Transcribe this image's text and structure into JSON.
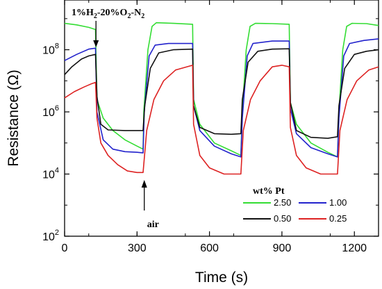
{
  "chart_data": {
    "type": "line",
    "xlabel": "Time (s)",
    "ylabel": "Resistance (Ω)",
    "xlim": [
      0,
      1300
    ],
    "ylim_log10": [
      2,
      9.6
    ],
    "y_scale": "log",
    "x_ticks": [
      0,
      300,
      600,
      900,
      1200
    ],
    "y_ticks": [
      {
        "label_base": "10",
        "label_exp": "2",
        "log": 2
      },
      {
        "label_base": "10",
        "label_exp": "4",
        "log": 4
      },
      {
        "label_base": "10",
        "label_exp": "6",
        "log": 6
      },
      {
        "label_base": "10",
        "label_exp": "8",
        "log": 8
      }
    ],
    "annotations": {
      "gas_parts": [
        "1%H",
        "2",
        "-20%O",
        "2",
        "-N",
        "2"
      ],
      "gas_x": 130,
      "air_label": "air",
      "air_x": 330
    },
    "legend": {
      "title": "wt% Pt",
      "placement": "bottom-right"
    },
    "series": [
      {
        "name": "2.50",
        "color": "#33dd33",
        "points": [
          [
            0,
            8.85
          ],
          [
            50,
            8.8
          ],
          [
            100,
            8.72
          ],
          [
            128,
            8.65
          ],
          [
            134,
            6.4
          ],
          [
            160,
            5.8
          ],
          [
            200,
            5.4
          ],
          [
            250,
            5.1
          ],
          [
            300,
            4.9
          ],
          [
            325,
            4.8
          ],
          [
            328,
            6.0
          ],
          [
            345,
            8.0
          ],
          [
            362,
            8.75
          ],
          [
            380,
            8.87
          ],
          [
            450,
            8.85
          ],
          [
            530,
            8.82
          ],
          [
            534,
            6.4
          ],
          [
            560,
            5.6
          ],
          [
            620,
            5.0
          ],
          [
            690,
            4.75
          ],
          [
            730,
            4.6
          ],
          [
            736,
            6.0
          ],
          [
            752,
            8.0
          ],
          [
            768,
            8.75
          ],
          [
            790,
            8.85
          ],
          [
            860,
            8.84
          ],
          [
            930,
            8.82
          ],
          [
            935,
            6.3
          ],
          [
            960,
            5.6
          ],
          [
            1020,
            5.0
          ],
          [
            1090,
            4.7
          ],
          [
            1130,
            4.55
          ],
          [
            1136,
            6.0
          ],
          [
            1152,
            8.0
          ],
          [
            1168,
            8.75
          ],
          [
            1190,
            8.85
          ],
          [
            1250,
            8.84
          ],
          [
            1300,
            8.78
          ]
        ]
      },
      {
        "name": "1.00",
        "color": "#2222cc",
        "points": [
          [
            0,
            7.65
          ],
          [
            50,
            7.85
          ],
          [
            100,
            8.02
          ],
          [
            128,
            8.05
          ],
          [
            134,
            6.0
          ],
          [
            160,
            5.1
          ],
          [
            200,
            4.8
          ],
          [
            250,
            4.72
          ],
          [
            300,
            4.7
          ],
          [
            325,
            4.68
          ],
          [
            330,
            6.0
          ],
          [
            350,
            7.8
          ],
          [
            375,
            8.15
          ],
          [
            430,
            8.2
          ],
          [
            530,
            8.2
          ],
          [
            534,
            6.2
          ],
          [
            560,
            5.4
          ],
          [
            620,
            4.9
          ],
          [
            690,
            4.65
          ],
          [
            730,
            4.55
          ],
          [
            736,
            5.8
          ],
          [
            756,
            7.8
          ],
          [
            780,
            8.2
          ],
          [
            860,
            8.28
          ],
          [
            930,
            8.28
          ],
          [
            935,
            6.1
          ],
          [
            960,
            5.3
          ],
          [
            1020,
            4.85
          ],
          [
            1090,
            4.65
          ],
          [
            1130,
            4.55
          ],
          [
            1136,
            5.8
          ],
          [
            1156,
            7.8
          ],
          [
            1180,
            8.2
          ],
          [
            1240,
            8.3
          ],
          [
            1300,
            8.35
          ]
        ]
      },
      {
        "name": "0.50",
        "color": "#111111",
        "points": [
          [
            0,
            7.2
          ],
          [
            30,
            7.45
          ],
          [
            70,
            7.7
          ],
          [
            100,
            7.8
          ],
          [
            128,
            7.85
          ],
          [
            134,
            6.5
          ],
          [
            150,
            5.6
          ],
          [
            180,
            5.42
          ],
          [
            250,
            5.4
          ],
          [
            300,
            5.4
          ],
          [
            325,
            5.4
          ],
          [
            332,
            6.2
          ],
          [
            355,
            7.4
          ],
          [
            390,
            7.9
          ],
          [
            450,
            8.0
          ],
          [
            530,
            8.02
          ],
          [
            534,
            6.2
          ],
          [
            560,
            5.5
          ],
          [
            620,
            5.3
          ],
          [
            690,
            5.28
          ],
          [
            730,
            5.3
          ],
          [
            736,
            6.4
          ],
          [
            760,
            7.6
          ],
          [
            800,
            7.95
          ],
          [
            860,
            8.02
          ],
          [
            930,
            8.03
          ],
          [
            935,
            6.3
          ],
          [
            960,
            5.4
          ],
          [
            1020,
            5.18
          ],
          [
            1090,
            5.15
          ],
          [
            1130,
            5.2
          ],
          [
            1136,
            6.2
          ],
          [
            1160,
            7.4
          ],
          [
            1200,
            7.85
          ],
          [
            1250,
            7.95
          ],
          [
            1300,
            8.0
          ]
        ]
      },
      {
        "name": "0.25",
        "color": "#dd2222",
        "points": [
          [
            0,
            6.45
          ],
          [
            40,
            6.65
          ],
          [
            80,
            6.8
          ],
          [
            110,
            6.9
          ],
          [
            128,
            6.95
          ],
          [
            134,
            5.8
          ],
          [
            150,
            5.0
          ],
          [
            180,
            4.6
          ],
          [
            220,
            4.3
          ],
          [
            260,
            4.1
          ],
          [
            300,
            4.05
          ],
          [
            325,
            4.05
          ],
          [
            340,
            5.4
          ],
          [
            370,
            6.4
          ],
          [
            410,
            7.0
          ],
          [
            460,
            7.35
          ],
          [
            530,
            7.5
          ],
          [
            534,
            5.6
          ],
          [
            560,
            4.6
          ],
          [
            600,
            4.2
          ],
          [
            660,
            4.0
          ],
          [
            730,
            4.0
          ],
          [
            740,
            5.4
          ],
          [
            770,
            6.4
          ],
          [
            810,
            7.0
          ],
          [
            860,
            7.45
          ],
          [
            900,
            7.5
          ],
          [
            930,
            7.45
          ],
          [
            935,
            5.5
          ],
          [
            960,
            4.6
          ],
          [
            1000,
            4.2
          ],
          [
            1060,
            4.0
          ],
          [
            1130,
            4.0
          ],
          [
            1140,
            5.4
          ],
          [
            1170,
            6.4
          ],
          [
            1210,
            7.0
          ],
          [
            1260,
            7.35
          ],
          [
            1300,
            7.45
          ]
        ]
      }
    ]
  }
}
